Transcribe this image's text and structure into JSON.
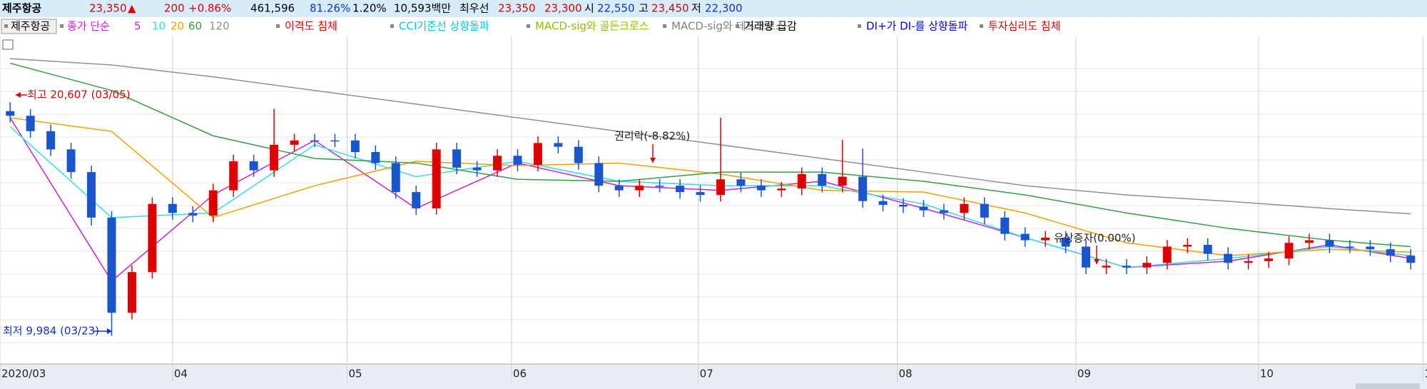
{
  "header": {
    "name": "제주항공",
    "price": "23,350",
    "direction": "▲",
    "change": "200",
    "change_pct": "+0.86%",
    "volume": "461,596",
    "ratio1": "81.26%",
    "ratio2": "1.20%",
    "amount": "10,593백만",
    "best_label": "최우선",
    "best_ask": "23,350",
    "best_bid": "23,300",
    "open_label": "시",
    "open": "22,550",
    "high_label": "고",
    "high": "23,450",
    "low_label": "저",
    "low": "22,300"
  },
  "legend": {
    "symbol": "제주항공",
    "ma_label": "종가 단순",
    "signals": [
      {
        "name": "이격도 침체",
        "color": "#e00000"
      },
      {
        "name": "CCI기준선 상향돌파",
        "color": "#00c8e0"
      },
      {
        "name": "MACD-sig와 골든크로스",
        "color": "#8cc000"
      },
      {
        "name": "MACD-sig와 데드크로스",
        "color": "#808080"
      },
      {
        "name": "거래량 급감",
        "color": "#000000"
      },
      {
        "name": "DI+가 DI-를 상향돌파",
        "color": "#0000e0"
      },
      {
        "name": "투자심리도 침체",
        "color": "#e00000"
      }
    ]
  },
  "chart_data": {
    "type": "candlestick",
    "up_color": "#e00000",
    "down_color": "#1a55d0",
    "open": [
      20200,
      19990,
      19290,
      18460,
      17430,
      15360,
      11030,
      12880,
      15980,
      15570,
      15450,
      16600,
      17920,
      17510,
      18670,
      18870,
      18870,
      18870,
      18340,
      17840,
      16520,
      15780,
      18460,
      17630,
      17510,
      18170,
      17760,
      18750,
      18580,
      17840,
      16810,
      16600,
      16810,
      16810,
      16520,
      16390,
      17100,
      16810,
      16600,
      16680,
      17340,
      16810,
      17220,
      16110,
      15940,
      15860,
      15690,
      15570,
      15980,
      15360,
      14620,
      14330,
      14450,
      14040,
      13090,
      13170,
      13090,
      13300,
      14040,
      14120,
      13710,
      13300,
      13380,
      13500,
      14210,
      14330,
      14040,
      14040,
      13920,
      13630
    ],
    "high": [
      20607,
      20290,
      19590,
      18760,
      17730,
      15660,
      13180,
      16280,
      16280,
      15870,
      16900,
      18220,
      18220,
      20300,
      19170,
      19170,
      19170,
      19170,
      18640,
      18140,
      16820,
      18760,
      18760,
      17930,
      18470,
      18470,
      19050,
      19050,
      18880,
      18140,
      17110,
      17110,
      17110,
      17110,
      16820,
      19900,
      17400,
      17110,
      16980,
      17640,
      17640,
      18900,
      18500,
      16410,
      16240,
      16160,
      15990,
      16280,
      16280,
      15660,
      14920,
      14750,
      14750,
      14340,
      13470,
      13470,
      13600,
      14340,
      14420,
      14420,
      14010,
      13680,
      13800,
      14510,
      14630,
      14630,
      14340,
      14340,
      14220,
      13930
    ],
    "low": [
      19690,
      18990,
      18160,
      17130,
      15000,
      9984,
      10730,
      12580,
      15270,
      15150,
      15150,
      16300,
      17210,
      17210,
      18370,
      18570,
      18570,
      18040,
      17540,
      16220,
      15480,
      15500,
      17330,
      17210,
      17210,
      17460,
      17460,
      18280,
      17540,
      16510,
      16300,
      16300,
      16510,
      16220,
      16090,
      16090,
      16510,
      16300,
      16300,
      16380,
      16510,
      16510,
      15810,
      15640,
      15560,
      15390,
      15270,
      15270,
      15060,
      14320,
      14030,
      14030,
      13740,
      12790,
      12790,
      12790,
      12790,
      13000,
      13740,
      13410,
      13000,
      13000,
      13080,
      13200,
      13910,
      13740,
      13740,
      13620,
      13330,
      13000
    ],
    "close": [
      19990,
      19290,
      18460,
      17430,
      15360,
      11030,
      12880,
      15980,
      15570,
      15450,
      16600,
      17920,
      17510,
      18670,
      18870,
      18870,
      18870,
      18340,
      17840,
      16520,
      15780,
      18460,
      17630,
      17510,
      18170,
      17760,
      18750,
      18580,
      17840,
      16810,
      16600,
      16810,
      16810,
      16520,
      16390,
      17100,
      16810,
      16600,
      16680,
      17340,
      16810,
      17220,
      16110,
      15940,
      15860,
      15690,
      15570,
      15980,
      15360,
      14620,
      14330,
      14450,
      14040,
      13090,
      13170,
      13090,
      13300,
      14040,
      14120,
      13710,
      13300,
      13380,
      13500,
      14210,
      14330,
      14040,
      14040,
      13920,
      13630,
      13300
    ],
    "series": [
      {
        "name": "5",
        "color": "#d020c8",
        "x": [
          0,
          5,
          10,
          15,
          20,
          25,
          30,
          35,
          40,
          45,
          50,
          55,
          60,
          65,
          69
        ],
        "values": [
          19900,
          12470,
          16390,
          18870,
          15780,
          17840,
          16810,
          16600,
          17010,
          15780,
          14450,
          13090,
          13380,
          14120,
          13500
        ]
      },
      {
        "name": "10",
        "color": "#30e0e8",
        "x": [
          0,
          5,
          10,
          15,
          20,
          25,
          30,
          35,
          40,
          45,
          50,
          55,
          60,
          65,
          69
        ],
        "values": [
          19490,
          15360,
          15570,
          18670,
          17220,
          17920,
          17010,
          16810,
          16810,
          15980,
          14450,
          13090,
          13500,
          14040,
          13630
        ]
      },
      {
        "name": "20",
        "color": "#f0a000",
        "x": [
          0,
          5,
          10,
          15,
          20,
          25,
          30,
          35,
          40,
          45,
          50,
          55,
          60,
          65,
          69
        ],
        "values": [
          19900,
          19280,
          15360,
          16810,
          17920,
          17720,
          17840,
          17340,
          16600,
          16520,
          15570,
          14210,
          13630,
          13920,
          13790
        ]
      },
      {
        "name": "60",
        "color": "#30a040",
        "x": [
          0,
          5,
          10,
          15,
          20,
          25,
          30,
          35,
          40,
          45,
          50,
          55,
          60,
          65,
          69
        ],
        "values": [
          22380,
          21140,
          19080,
          18050,
          17840,
          17100,
          17010,
          17430,
          17430,
          17010,
          16390,
          15570,
          14870,
          14330,
          14040
        ]
      },
      {
        "name": "120",
        "color": "#909090",
        "x": [
          0,
          5,
          10,
          15,
          20,
          25,
          30,
          35,
          40,
          45,
          50,
          55,
          60,
          65,
          69
        ],
        "values": [
          22590,
          22300,
          21760,
          21140,
          20520,
          19900,
          19280,
          18670,
          18050,
          17430,
          16810,
          16390,
          16100,
          15770,
          15530
        ]
      }
    ],
    "xlim": [
      -0.5,
      69.8
    ],
    "ylim": [
      8700,
      23600
    ],
    "xticks": [
      {
        "value": -0.5,
        "label": "2020/03"
      },
      {
        "value": 8,
        "label": "04"
      },
      {
        "value": 16.6,
        "label": "05"
      },
      {
        "value": 24.7,
        "label": "06"
      },
      {
        "value": 33.9,
        "label": "07"
      },
      {
        "value": 43.7,
        "label": "08"
      },
      {
        "value": 52.5,
        "label": "09"
      },
      {
        "value": 61.5,
        "label": "10"
      },
      {
        "value": 69.6,
        "label": "1"
      }
    ],
    "annotations": [
      {
        "text": "최고 20,607 (03/05)",
        "color": "#e00000"
      },
      {
        "text": "최저 9,984 (03/23)",
        "color": "#1030d0"
      },
      {
        "text": "권리락(-8.82%)",
        "color": "#202020"
      },
      {
        "text": "유상증자(0.00%)",
        "color": "#202020"
      }
    ]
  }
}
